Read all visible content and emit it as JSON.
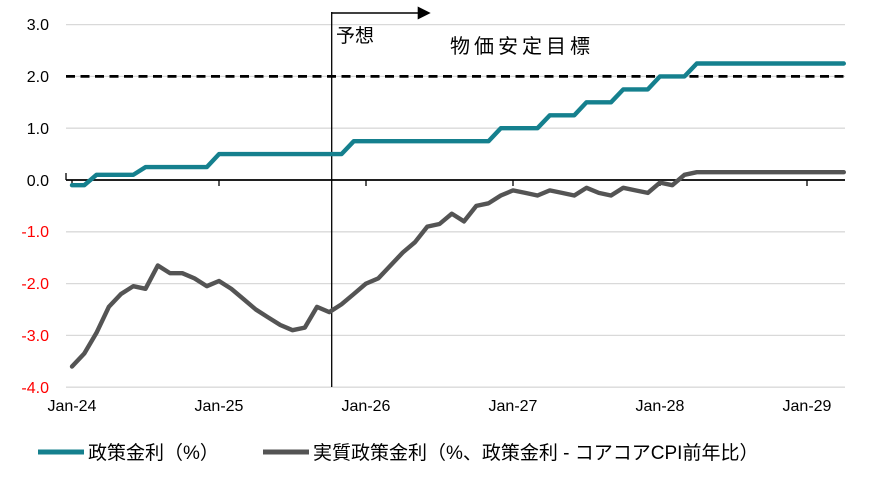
{
  "chart_data": {
    "type": "line",
    "frequency": "monthly",
    "x_start": "Jan-24",
    "x_end": "Apr-29",
    "x_tick_labels": [
      "Jan-24",
      "Jan-25",
      "Jan-26",
      "Jan-27",
      "Jan-28",
      "Jan-29"
    ],
    "y_tick_labels": [
      "3.0",
      "2.0",
      "1.0",
      "0.0",
      "-1.0",
      "-2.0",
      "-3.0",
      "-4.0"
    ],
    "y_ticks": [
      3,
      2,
      1,
      0,
      -1,
      -2,
      -3,
      -4
    ],
    "ylim": [
      -4.0,
      3.0
    ],
    "grid": true,
    "legend_position": "bottom",
    "negative_tick_color": "#ff0000",
    "gridline_color": "#d9d9d9",
    "series": [
      {
        "name": "政策金利（%）",
        "color": "#15808e",
        "values": [
          -0.1,
          -0.1,
          0.1,
          0.1,
          0.1,
          0.1,
          0.25,
          0.25,
          0.25,
          0.25,
          0.25,
          0.25,
          0.5,
          0.5,
          0.5,
          0.5,
          0.5,
          0.5,
          0.5,
          0.5,
          0.5,
          0.5,
          0.5,
          0.75,
          0.75,
          0.75,
          0.75,
          0.75,
          0.75,
          0.75,
          0.75,
          0.75,
          0.75,
          0.75,
          0.75,
          1.0,
          1.0,
          1.0,
          1.0,
          1.25,
          1.25,
          1.25,
          1.5,
          1.5,
          1.5,
          1.75,
          1.75,
          1.75,
          2.0,
          2.0,
          2.0,
          2.25,
          2.25,
          2.25,
          2.25,
          2.25,
          2.25,
          2.25,
          2.25,
          2.25,
          2.25,
          2.25,
          2.25,
          2.25
        ]
      },
      {
        "name": "実質政策金利（%、政策金利 - コアコアCPI前年比）",
        "color": "#545454",
        "values": [
          -3.6,
          -3.35,
          -2.95,
          -2.45,
          -2.2,
          -2.05,
          -2.1,
          -1.65,
          -1.8,
          -1.8,
          -1.9,
          -2.05,
          -1.95,
          -2.1,
          -2.3,
          -2.5,
          -2.65,
          -2.8,
          -2.9,
          -2.85,
          -2.45,
          -2.55,
          -2.4,
          -2.2,
          -2.0,
          -1.9,
          -1.65,
          -1.4,
          -1.2,
          -0.9,
          -0.85,
          -0.65,
          -0.8,
          -0.5,
          -0.45,
          -0.3,
          -0.2,
          -0.25,
          -0.3,
          -0.2,
          -0.25,
          -0.3,
          -0.15,
          -0.25,
          -0.3,
          -0.15,
          -0.2,
          -0.25,
          -0.05,
          -0.1,
          0.1,
          0.15,
          0.15,
          0.15,
          0.15,
          0.15,
          0.15,
          0.15,
          0.15,
          0.15,
          0.15,
          0.15,
          0.15,
          0.15
        ]
      }
    ],
    "reference_line": {
      "value": 2.0,
      "label": "物価安定目標",
      "style": "dashed",
      "color": "#000000"
    },
    "forecast_divider": {
      "month_index": 21.2,
      "label": "予想"
    }
  }
}
